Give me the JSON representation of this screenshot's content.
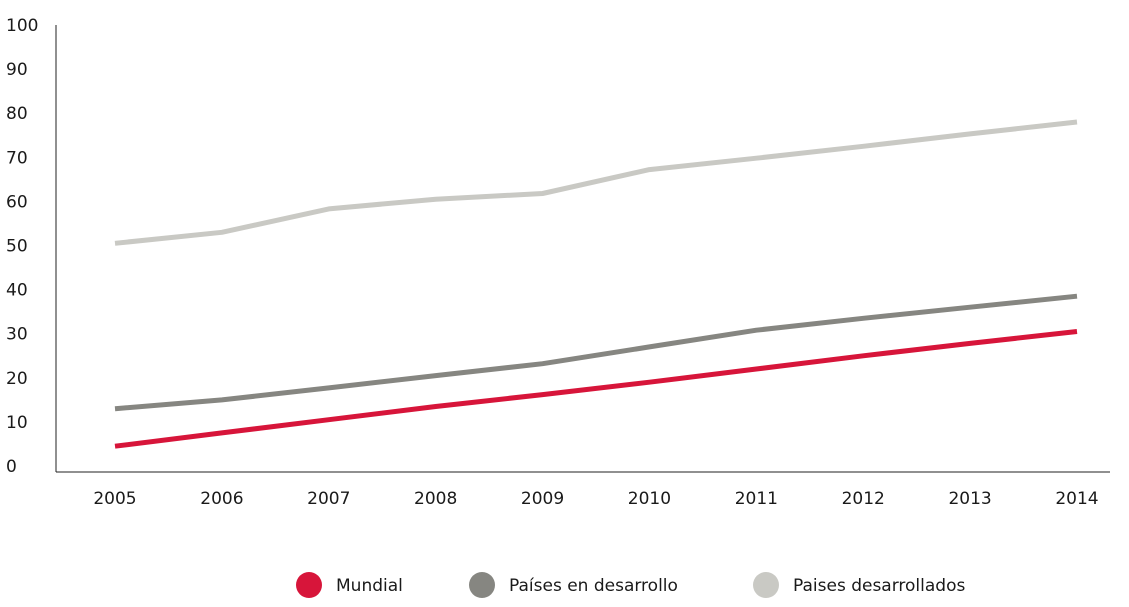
{
  "chart_data": {
    "type": "line",
    "x": [
      "2005",
      "2006",
      "2007",
      "2008",
      "2009",
      "2010",
      "2011",
      "2012",
      "2013",
      "2014"
    ],
    "ylim": [
      0,
      100
    ],
    "yticks": [
      "0",
      "10",
      "20",
      "30",
      "40",
      "50",
      "60",
      "70",
      "80",
      "90",
      "100"
    ],
    "grid": false,
    "legend_position": "bottom",
    "series": [
      {
        "name": "Mundial",
        "color": "#d7153a",
        "values": [
          4.5,
          7.5,
          10.5,
          13.5,
          16.2,
          19.0,
          22.0,
          25.0,
          27.8,
          30.5
        ]
      },
      {
        "name": "Países en desarrollo",
        "color": "#868681",
        "values": [
          13.0,
          15.0,
          17.7,
          20.5,
          23.2,
          27.0,
          30.8,
          33.5,
          36.0,
          38.5
        ]
      },
      {
        "name": "Paises desarrollados",
        "color": "#c9c9c4",
        "values": [
          50.5,
          53.0,
          58.3,
          60.5,
          61.8,
          67.2,
          69.8,
          72.5,
          75.3,
          78.0
        ]
      }
    ]
  }
}
